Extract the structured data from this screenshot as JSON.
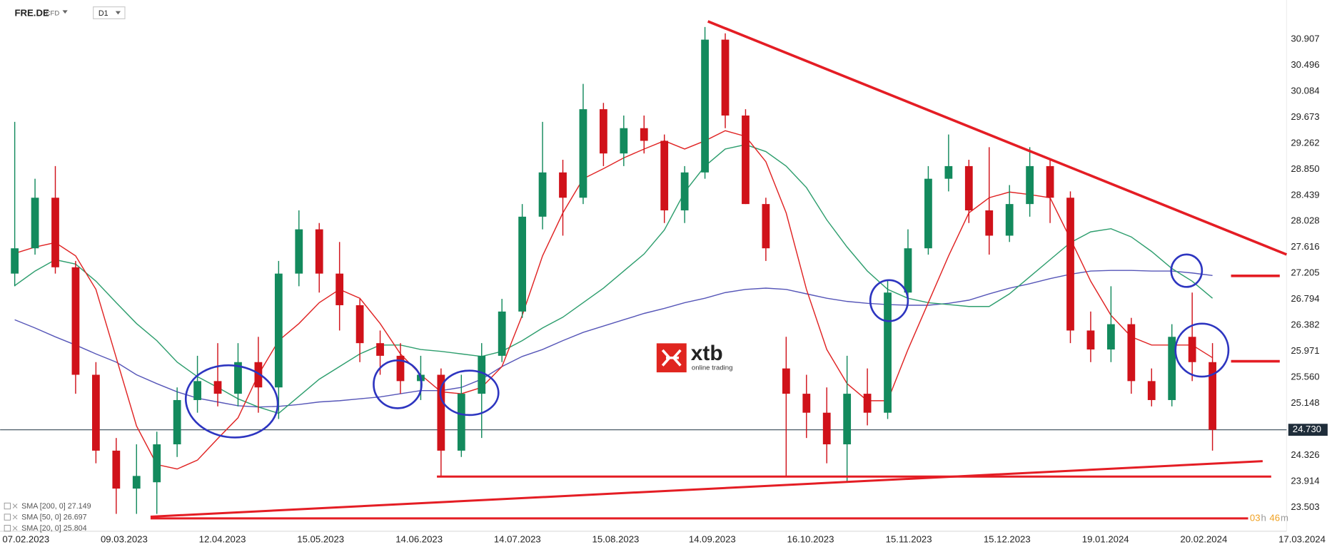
{
  "header": {
    "symbol": "FRE.DE",
    "market": "CFD",
    "interval": "D1"
  },
  "watermark": {
    "brand": "xtb",
    "tagline": "online trading"
  },
  "timer": [
    "03",
    "h",
    "46",
    "m"
  ],
  "chart_data": {
    "type": "candlestick",
    "up_color": "#138a5d",
    "down_color": "#d0121a",
    "open": [
      27.2,
      27.6,
      28.4,
      27.3,
      25.6,
      24.4,
      23.8,
      23.9,
      24.5,
      25.2,
      25.5,
      25.3,
      25.8,
      25.4,
      27.2,
      27.9,
      27.2,
      26.7,
      26.1,
      25.9,
      25.5,
      25.6,
      24.4,
      25.3,
      25.9,
      26.6,
      28.1,
      28.8,
      28.4,
      29.8,
      29.1,
      29.5,
      29.3,
      28.2,
      28.8,
      30.9,
      29.7,
      28.3,
      25.7,
      25.3,
      25.0,
      24.5,
      25.3,
      25.0,
      26.9,
      27.6,
      28.7,
      28.9,
      28.2,
      27.8,
      28.3,
      28.9,
      28.4,
      26.3,
      26.0,
      26.4,
      25.5,
      25.2,
      26.2,
      25.8
    ],
    "high": [
      29.6,
      28.7,
      28.9,
      27.4,
      25.8,
      24.6,
      24.5,
      24.7,
      25.4,
      25.9,
      26.1,
      26.1,
      26.2,
      27.4,
      28.2,
      28.0,
      27.7,
      26.8,
      26.3,
      26.1,
      25.9,
      25.7,
      25.6,
      26.1,
      26.8,
      28.3,
      29.6,
      29.0,
      30.2,
      29.9,
      29.7,
      29.7,
      29.4,
      28.9,
      31.1,
      31.0,
      29.8,
      28.4,
      26.2,
      25.6,
      25.4,
      25.9,
      25.7,
      27.1,
      27.9,
      28.9,
      29.4,
      29.0,
      29.2,
      28.6,
      29.2,
      29.0,
      28.5,
      26.6,
      27.0,
      26.5,
      25.7,
      26.4,
      26.9,
      26.1
    ],
    "low": [
      27.0,
      27.5,
      27.2,
      25.3,
      24.2,
      23.4,
      23.4,
      23.4,
      24.3,
      25.0,
      25.1,
      25.1,
      25.0,
      24.9,
      27.0,
      26.9,
      26.3,
      25.8,
      25.6,
      25.3,
      25.2,
      24.0,
      24.3,
      24.6,
      25.8,
      26.5,
      27.9,
      27.8,
      28.3,
      28.9,
      28.9,
      29.1,
      28.0,
      28.0,
      28.7,
      29.5,
      28.3,
      27.4,
      24.0,
      24.6,
      24.2,
      23.9,
      24.8,
      24.9,
      26.8,
      27.5,
      28.5,
      28.0,
      27.5,
      27.7,
      28.1,
      28.0,
      26.1,
      25.8,
      25.8,
      25.3,
      25.1,
      25.1,
      25.5,
      24.4
    ],
    "close": [
      27.6,
      28.4,
      27.3,
      25.6,
      24.4,
      23.8,
      24.0,
      24.5,
      25.2,
      25.5,
      25.3,
      25.8,
      25.4,
      27.2,
      27.9,
      27.2,
      26.7,
      26.1,
      25.9,
      25.5,
      25.6,
      24.4,
      25.3,
      25.9,
      26.6,
      28.1,
      28.8,
      28.4,
      29.8,
      29.1,
      29.5,
      29.3,
      28.2,
      28.8,
      30.9,
      29.7,
      28.3,
      27.6,
      25.3,
      25.0,
      24.5,
      25.3,
      25.0,
      26.9,
      27.6,
      28.7,
      28.9,
      28.2,
      27.8,
      28.3,
      28.9,
      28.4,
      26.3,
      26.0,
      26.4,
      25.5,
      25.2,
      26.2,
      25.8,
      24.73
    ],
    "series": [
      {
        "name": "SMA [200, 0] 27.149",
        "color": "#5656b8",
        "values": [
          26.47,
          26.34,
          26.2,
          26.07,
          25.93,
          25.8,
          25.6,
          25.46,
          25.33,
          25.23,
          25.17,
          25.11,
          25.09,
          25.1,
          25.13,
          25.17,
          25.19,
          25.22,
          25.25,
          25.3,
          25.35,
          25.35,
          25.4,
          25.53,
          25.73,
          25.89,
          26.0,
          26.14,
          26.27,
          26.37,
          26.47,
          26.57,
          26.65,
          26.74,
          26.81,
          26.9,
          26.95,
          26.97,
          26.95,
          26.88,
          26.81,
          26.76,
          26.73,
          26.71,
          26.7,
          26.7,
          26.73,
          26.78,
          26.88,
          26.97,
          27.04,
          27.12,
          27.19,
          27.24,
          27.25,
          27.25,
          27.24,
          27.24,
          27.21,
          27.17
        ]
      },
      {
        "name": "SMA [50, 0] 26.697",
        "color": "#2e9e6e",
        "values": [
          27.01,
          27.24,
          27.42,
          27.35,
          27.08,
          26.74,
          26.41,
          26.14,
          25.8,
          25.57,
          25.4,
          25.22,
          25.09,
          24.99,
          25.26,
          25.53,
          25.73,
          25.93,
          26.07,
          26.07,
          26.0,
          25.97,
          25.93,
          25.89,
          25.97,
          26.14,
          26.34,
          26.51,
          26.74,
          26.97,
          27.24,
          27.51,
          27.89,
          28.49,
          28.9,
          29.17,
          29.24,
          29.13,
          28.9,
          28.56,
          28.05,
          27.62,
          27.24,
          26.95,
          26.81,
          26.74,
          26.71,
          26.68,
          26.68,
          26.88,
          27.15,
          27.42,
          27.69,
          27.86,
          27.91,
          27.78,
          27.55,
          27.28,
          27.08,
          26.81
        ]
      },
      {
        "name": "SMA [20, 0] 25.804",
        "color": "#e02424",
        "values": [
          27.52,
          27.62,
          27.69,
          27.48,
          26.95,
          25.87,
          24.79,
          24.18,
          24.11,
          24.25,
          24.59,
          24.92,
          25.6,
          26.14,
          26.41,
          26.74,
          26.95,
          26.81,
          26.41,
          25.93,
          25.6,
          25.33,
          25.3,
          25.4,
          25.73,
          26.54,
          27.48,
          28.16,
          28.7,
          28.86,
          29.03,
          29.17,
          29.3,
          29.17,
          29.3,
          29.46,
          29.37,
          28.97,
          28.16,
          26.95,
          26.0,
          25.46,
          25.19,
          25.19,
          26.0,
          26.74,
          27.48,
          28.16,
          28.4,
          28.49,
          28.45,
          28.4,
          27.75,
          27.08,
          26.54,
          26.2,
          26.07,
          26.07,
          26.07,
          25.87
        ]
      }
    ],
    "last_price": {
      "value": 24.73,
      "label": "24.730"
    },
    "xlim": [
      -0.72,
      62.65
    ],
    "xticks": [
      {
        "value": 0.55,
        "label": "07.02.2023"
      },
      {
        "value": 5.39,
        "label": "09.03.2023"
      },
      {
        "value": 10.23,
        "label": "12.04.2023"
      },
      {
        "value": 15.07,
        "label": "15.05.2023"
      },
      {
        "value": 19.92,
        "label": "14.06.2023"
      },
      {
        "value": 24.76,
        "label": "14.07.2023"
      },
      {
        "value": 29.6,
        "label": "15.08.2023"
      },
      {
        "value": 34.36,
        "label": "14.09.2023"
      },
      {
        "value": 39.2,
        "label": "16.10.2023"
      },
      {
        "value": 44.04,
        "label": "15.11.2023"
      },
      {
        "value": 48.88,
        "label": "15.12.2023"
      },
      {
        "value": 53.73,
        "label": "19.01.2024"
      },
      {
        "value": 58.57,
        "label": "20.02.2024"
      },
      {
        "value": 63.41,
        "label": "17.03.2024"
      }
    ],
    "ylim": [
      23.126,
      31.527
    ],
    "yticks": [
      30.907,
      30.496,
      30.084,
      29.673,
      29.262,
      {
        "value": 28.85,
        "label": "28.850"
      },
      28.439,
      28.028,
      27.616,
      27.205,
      26.794,
      26.382,
      25.971,
      {
        "value": 25.56,
        "label": "25.560"
      },
      25.148,
      24.326,
      23.914,
      23.503
    ],
    "grid": false
  }
}
